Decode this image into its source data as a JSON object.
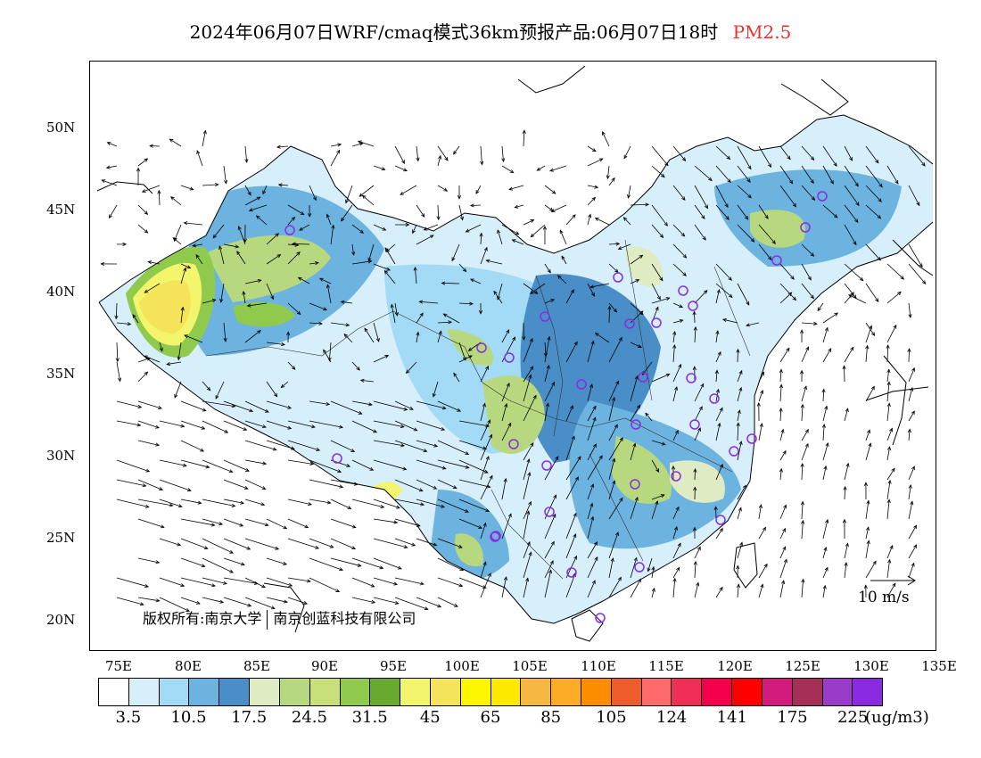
{
  "title": {
    "main": "2024年06月07日WRF/cmaq模式36km预报产品:06月07日18时",
    "species": "PM2.5"
  },
  "axes": {
    "lat_labels": [
      "50N",
      "45N",
      "40N",
      "35N",
      "30N",
      "25N",
      "20N"
    ],
    "lon_labels": [
      "75E",
      "80E",
      "85E",
      "90E",
      "95E",
      "100E",
      "105E",
      "110E",
      "115E",
      "120E",
      "125E",
      "130E",
      "135E"
    ]
  },
  "copyright": {
    "part1": "版权所有:南京大学",
    "part2": "南京创蓝科技有限公司"
  },
  "wind_reference": "10 m/s",
  "colorbar": {
    "colors": [
      "#ffffff",
      "#d6effb",
      "#a3daf5",
      "#6cb3e0",
      "#4a8ec7",
      "#dfecc3",
      "#b8d87f",
      "#c7e07a",
      "#8fca4c",
      "#6aa92f",
      "#f3f56c",
      "#f5e35a",
      "#fef500",
      "#fde800",
      "#f7b843",
      "#fcab25",
      "#fd8c00",
      "#ef5c2b",
      "#ff6a6a",
      "#ef2f55",
      "#f5004a",
      "#ff0000",
      "#d21b7d",
      "#a62f58",
      "#9a3bc9",
      "#8a2be2"
    ],
    "labels": [
      "3.5",
      "10.5",
      "17.5",
      "24.5",
      "31.5",
      "45",
      "65",
      "85",
      "105",
      "124",
      "141",
      "175",
      "225"
    ],
    "unit": "(ug/m3)"
  }
}
